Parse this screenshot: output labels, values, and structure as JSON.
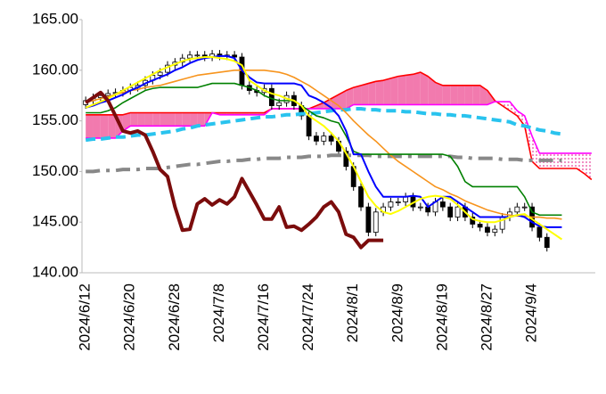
{
  "chart_data": {
    "type": "ichimoku",
    "categories": [
      "2024/6/12",
      null,
      null,
      null,
      null,
      null,
      "2024/6/20",
      null,
      null,
      null,
      null,
      null,
      "2024/6/28",
      null,
      null,
      null,
      null,
      null,
      "2024/7/8",
      null,
      null,
      null,
      null,
      null,
      "2024/7/16",
      null,
      null,
      null,
      null,
      null,
      "2024/7/24",
      null,
      null,
      null,
      null,
      null,
      "2024/8/1",
      null,
      null,
      null,
      null,
      null,
      "2024/8/9",
      null,
      null,
      null,
      null,
      null,
      "2024/8/19",
      null,
      null,
      null,
      null,
      null,
      "2024/8/27",
      null,
      null,
      null,
      null,
      null,
      "2024/9/4",
      null,
      null,
      null,
      null,
      null,
      null,
      null,
      null
    ],
    "ylim": [
      140,
      165
    ],
    "yticks": [
      {
        "value": 140,
        "label": "140.00"
      },
      {
        "value": 145,
        "label": "145.00"
      },
      {
        "value": 150,
        "label": "150.00"
      },
      {
        "value": 155,
        "label": "155.00"
      },
      {
        "value": 160,
        "label": "160.00"
      },
      {
        "value": 165,
        "label": "165.00"
      }
    ],
    "candles": {
      "up_color": "#ffffff",
      "down_color": "#000000",
      "open": [
        156.6,
        157.0,
        157.3,
        157.5,
        157.7,
        157.8,
        158.0,
        158.3,
        158.5,
        159.0,
        159.5,
        159.8,
        160.5,
        160.8,
        161.2,
        161.5,
        161.5,
        161.3,
        161.6,
        161.4,
        161.5,
        161.3,
        158.5,
        158.0,
        157.8,
        158.2,
        156.5,
        156.8,
        157.5,
        156.5,
        155.5,
        153.5,
        153.0,
        153.5,
        153.0,
        152.0,
        150.5,
        148.5,
        146.5,
        144.0,
        146.0,
        146.5,
        147.0,
        147.0,
        147.5,
        146.5,
        146.5,
        146.0,
        147.0,
        146.5,
        145.5,
        146.5,
        145.5,
        144.8,
        144.5,
        144.0,
        144.3,
        145.5,
        146.0,
        146.5,
        146.5,
        144.5,
        143.5
      ],
      "high": [
        157.4,
        157.7,
        157.9,
        158.1,
        158.2,
        158.4,
        158.7,
        158.9,
        159.4,
        159.9,
        160.2,
        160.9,
        161.2,
        161.6,
        161.9,
        161.9,
        161.9,
        162.0,
        162.0,
        161.9,
        161.9,
        161.7,
        158.9,
        158.4,
        158.6,
        158.6,
        157.2,
        157.9,
        157.9,
        156.9,
        155.9,
        153.9,
        153.9,
        153.9,
        153.4,
        152.4,
        150.9,
        148.9,
        146.9,
        146.4,
        146.9,
        147.4,
        147.4,
        147.9,
        147.9,
        146.9,
        146.9,
        147.4,
        147.4,
        146.9,
        146.9,
        146.9,
        145.9,
        145.2,
        144.9,
        144.7,
        145.9,
        146.4,
        146.9,
        146.9,
        146.9,
        144.9,
        143.9
      ],
      "low": [
        156.2,
        156.6,
        156.9,
        157.1,
        157.3,
        157.4,
        157.6,
        157.9,
        158.1,
        158.6,
        159.1,
        159.4,
        160.1,
        160.4,
        160.8,
        161.1,
        160.9,
        160.9,
        161.0,
        161.0,
        160.9,
        158.1,
        157.6,
        157.4,
        157.4,
        156.1,
        156.1,
        156.4,
        156.1,
        155.1,
        153.1,
        152.6,
        152.6,
        152.6,
        151.6,
        150.1,
        148.1,
        146.1,
        143.6,
        143.6,
        145.6,
        146.1,
        146.6,
        146.6,
        146.1,
        146.1,
        145.6,
        145.6,
        146.1,
        145.1,
        145.1,
        145.1,
        144.4,
        144.1,
        143.6,
        143.6,
        143.9,
        145.1,
        145.6,
        146.1,
        144.1,
        143.1,
        142.1
      ],
      "close": [
        157.0,
        157.3,
        157.5,
        157.7,
        157.8,
        158.0,
        158.3,
        158.5,
        159.0,
        159.5,
        159.8,
        160.5,
        160.8,
        161.2,
        161.5,
        161.5,
        161.3,
        161.6,
        161.4,
        161.5,
        161.3,
        158.5,
        158.0,
        157.8,
        158.2,
        156.5,
        156.8,
        157.5,
        156.5,
        155.5,
        153.5,
        153.0,
        153.5,
        153.0,
        152.0,
        150.5,
        148.5,
        146.5,
        144.0,
        146.0,
        146.5,
        147.0,
        147.0,
        147.5,
        146.5,
        146.5,
        146.0,
        147.0,
        146.5,
        145.5,
        146.5,
        145.5,
        144.8,
        144.5,
        144.0,
        144.3,
        145.5,
        146.0,
        146.5,
        146.5,
        144.5,
        143.5,
        142.5
      ]
    },
    "cloud": {
      "fill": "#f27aae",
      "a": {
        "color": "#ff0000",
        "values": [
          155.6,
          155.6,
          155.6,
          155.6,
          155.6,
          155.6,
          155.8,
          155.8,
          155.8,
          155.8,
          155.8,
          155.8,
          155.8,
          155.8,
          155.8,
          155.8,
          155.8,
          155.8,
          155.8,
          155.8,
          155.8,
          155.8,
          155.8,
          155.8,
          155.8,
          156.2,
          156.2,
          156.2,
          156.2,
          156.2,
          156.2,
          156.5,
          156.8,
          157.2,
          157.6,
          158,
          158.3,
          158.5,
          158.7,
          158.9,
          159,
          159.2,
          159.4,
          159.5,
          159.6,
          159.8,
          159.4,
          158.8,
          158.5,
          158.5,
          158.5,
          158.5,
          158.5,
          158.5,
          158,
          157,
          156.5,
          156,
          155.5,
          154.5,
          151,
          150.3,
          150.3,
          150.3,
          150.3,
          150.3,
          150.3,
          149.8,
          149.2
        ]
      },
      "b": {
        "color": "#ff00ff",
        "values": [
          153.3,
          153.3,
          153.3,
          153.3,
          153.3,
          154,
          154.5,
          154.5,
          154.5,
          154.5,
          154.5,
          154.5,
          154.5,
          154.5,
          154.5,
          154.5,
          154.5,
          155.8,
          155.6,
          155.6,
          155.6,
          155.6,
          155.6,
          155.6,
          155.6,
          156.2,
          156.2,
          156.2,
          156.2,
          156.2,
          156.2,
          156.2,
          156.2,
          156.2,
          156.2,
          156.2,
          156.6,
          156.6,
          156.6,
          156.6,
          156.6,
          156.6,
          156.6,
          156.6,
          156.6,
          156.6,
          156.6,
          156.6,
          156.6,
          156.6,
          156.6,
          156.6,
          156.6,
          156.6,
          156.6,
          156.9,
          156.9,
          156.9,
          156,
          155.5,
          153.5,
          151.8,
          151.8,
          151.8,
          151.8,
          151.8,
          151.8,
          151.8,
          151.8
        ]
      }
    },
    "lines": [
      {
        "color": "#888888",
        "width": 4,
        "dash": "16,7,4,7",
        "values": [
          150,
          150,
          150.1,
          150.1,
          150.1,
          150.2,
          150.2,
          150.2,
          150.3,
          150.3,
          150.3,
          150.4,
          150.5,
          150.6,
          150.7,
          150.7,
          150.8,
          150.9,
          151,
          151,
          151.1,
          151.1,
          151.2,
          151.2,
          151.3,
          151.3,
          151.3,
          151.4,
          151.4,
          151.4,
          151.5,
          151.5,
          151.5,
          151.6,
          151.6,
          151.6,
          151.6,
          151.6,
          151.6,
          151.5,
          151.5,
          151.5,
          151.5,
          151.5,
          151.5,
          151.5,
          151.5,
          151.5,
          151.5,
          151.5,
          151.4,
          151.4,
          151.3,
          151.3,
          151.3,
          151.3,
          151.2,
          151.2,
          151.2,
          151.1,
          151.1,
          151.1,
          151.1,
          151.1,
          151.1,
          null,
          null,
          null,
          null
        ]
      },
      {
        "color": "#29c3ee",
        "width": 4,
        "dash": "11,6",
        "values": [
          153.1,
          153.2,
          153.2,
          153.3,
          153.4,
          153.4,
          153.5,
          153.6,
          153.6,
          153.7,
          153.8,
          153.9,
          154,
          154.2,
          154.3,
          154.5,
          154.6,
          154.7,
          154.8,
          154.9,
          155,
          155.1,
          155.2,
          155.3,
          155.4,
          155.4,
          155.5,
          155.6,
          155.6,
          155.7,
          155.7,
          155.8,
          155.9,
          156,
          156.1,
          156.1,
          156.2,
          156.2,
          156.1,
          156.1,
          156,
          156,
          156,
          155.9,
          155.9,
          155.8,
          155.7,
          155.7,
          155.6,
          155.6,
          155.5,
          155.5,
          155.4,
          155.3,
          155.2,
          155.1,
          155,
          154.9,
          154.6,
          154.5,
          154.3,
          154.1,
          154,
          153.8,
          153.7,
          null,
          null,
          null,
          null
        ]
      },
      {
        "color": "#f7941d",
        "width": 1.6,
        "dash": null,
        "values": [
          156.8,
          157,
          157.2,
          157.4,
          157.6,
          157.8,
          158,
          158.1,
          158.3,
          158.4,
          158.5,
          158.7,
          158.9,
          159.1,
          159.3,
          159.5,
          159.6,
          159.7,
          159.8,
          159.9,
          160,
          160,
          160,
          160,
          160,
          159.9,
          159.8,
          159.6,
          159.3,
          158.9,
          158.5,
          158,
          157.5,
          157,
          156.5,
          155.8,
          155,
          154.3,
          153.6,
          153,
          152.3,
          151.6,
          151,
          150.5,
          150,
          149.5,
          149,
          148.5,
          148.2,
          147.8,
          147.5,
          147.1,
          146.8,
          146.5,
          146.2,
          146,
          145.8,
          145.7,
          145.6,
          145.6,
          145.5,
          145.5,
          145.4,
          145.4,
          145.3,
          null,
          null,
          null,
          null
        ]
      },
      {
        "color": "#008000",
        "width": 1.6,
        "dash": null,
        "values": [
          155.8,
          155.8,
          155.8,
          156,
          156.3,
          156.8,
          157.2,
          157.6,
          158,
          158.2,
          158.3,
          158.3,
          158.3,
          158.3,
          158.3,
          158.3,
          158.5,
          158.7,
          158.7,
          158.7,
          158.7,
          158.5,
          158.3,
          158,
          157.5,
          157.2,
          157,
          157,
          157,
          156.5,
          156,
          155.5,
          155.3,
          155,
          154.8,
          153.5,
          152,
          151.7,
          151.7,
          151.7,
          151.7,
          151.7,
          151.7,
          151.7,
          151.7,
          151.7,
          151.7,
          151.7,
          151.7,
          151.5,
          150.5,
          149,
          148.5,
          148.5,
          148.5,
          148.5,
          148.5,
          148.5,
          148.5,
          147.5,
          146,
          145.7,
          145.7,
          145.7,
          145.7,
          null,
          null,
          null,
          null
        ]
      },
      {
        "color": "#0000ff",
        "width": 2,
        "dash": null,
        "values": [
          156.3,
          156.5,
          156.8,
          157,
          157.3,
          157.6,
          158,
          158.3,
          158.7,
          159,
          159.3,
          159.6,
          160,
          160.3,
          160.7,
          161,
          161.2,
          161.3,
          161.4,
          161.4,
          161.2,
          160,
          159.3,
          158.8,
          158.7,
          158.7,
          158.7,
          158.7,
          158.7,
          158.5,
          157.5,
          157.2,
          156.8,
          156.3,
          155.5,
          154,
          151.7,
          151.7,
          150,
          148.5,
          147.5,
          147.5,
          147.5,
          147.5,
          147.6,
          147.5,
          146.5,
          147,
          147.5,
          147.5,
          147,
          146.5,
          146,
          145.5,
          145.5,
          145.5,
          145.5,
          145.5,
          145.7,
          145.5,
          145,
          144.6,
          144.5,
          144.5,
          144.5,
          null,
          null,
          null,
          null
        ]
      },
      {
        "color": "#ffff00",
        "width": 2,
        "dash": null,
        "values": [
          156.3,
          156.6,
          156.9,
          157.2,
          157.6,
          158,
          158.4,
          158.8,
          159.2,
          159.6,
          160,
          160.3,
          160.6,
          160.9,
          161.1,
          161.2,
          161.3,
          161.3,
          161.2,
          161.1,
          160.9,
          160.5,
          159,
          158.5,
          158,
          157.7,
          157.5,
          157.2,
          157,
          156.5,
          155.5,
          155,
          154.5,
          153.8,
          153,
          151.8,
          150.5,
          149,
          147.5,
          146.6,
          146,
          145.8,
          146.1,
          146.5,
          146.9,
          147.3,
          147.5,
          147.6,
          147.5,
          147.3,
          146.7,
          146,
          145.3,
          145.1,
          145,
          145,
          145.2,
          145.5,
          145.7,
          145.8,
          145.3,
          144.8,
          144.3,
          143.8,
          143.3,
          null,
          null,
          null,
          null
        ]
      },
      {
        "color": "#7b0c0c",
        "width": 4,
        "dash": null,
        "values": [
          156.8,
          157.3,
          157.8,
          157,
          155.5,
          154,
          153.8,
          154,
          153.6,
          152,
          150.2,
          149.5,
          146.5,
          144.2,
          144.3,
          146.8,
          147.3,
          146.7,
          147.2,
          146.8,
          147.5,
          149.3,
          148,
          146.7,
          145.3,
          145.3,
          146.5,
          144.5,
          144.6,
          144.2,
          144.8,
          145.5,
          146.5,
          147,
          146,
          143.8,
          143.5,
          142.5,
          143.2,
          143.2,
          143.2,
          null,
          null,
          null,
          null,
          null,
          null,
          null,
          null,
          null,
          null,
          null,
          null,
          null,
          null,
          null,
          null,
          null,
          null,
          null,
          null,
          null,
          null,
          null,
          null,
          null,
          null,
          null,
          null
        ]
      }
    ]
  }
}
